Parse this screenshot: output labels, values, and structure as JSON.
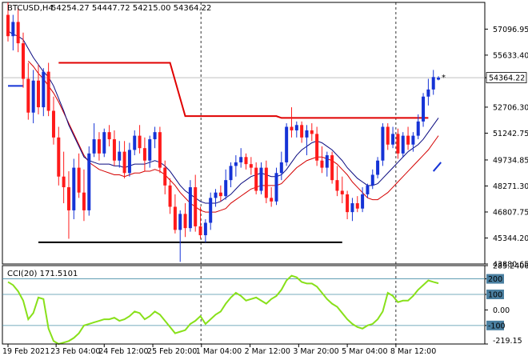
{
  "header": {
    "symbol": "BTCUSD,H4",
    "ohlc": "54254.27 54447.72 54215.00 54364.22"
  },
  "cci_panel": {
    "label": "CCI(20) 171.5101"
  },
  "colors": {
    "bull_candle": "#1533d6",
    "bear_candle": "#ff1a1a",
    "blue_ma": "#0a0a80",
    "red_ma": "#d40000",
    "resistance_line": "#e00000",
    "support_line": "#000000",
    "cci_line": "#88e01a",
    "cci_level_line": "#4a90a8",
    "axis": "#000000",
    "price_box": "#ffffff"
  },
  "chart_data": [
    {
      "type": "candlestick",
      "title": "BTCUSD,H4",
      "price_axis_labels": [
        "57096.95",
        "55633.40",
        "54364.22",
        "52706.30",
        "51242.75",
        "49734.85",
        "48271.30",
        "46807.75",
        "45344.20",
        "43880.65"
      ],
      "ylim": [
        43880.65,
        58600
      ],
      "current_price": "54364.22",
      "time_labels": [
        "19 Feb 2021",
        "23 Feb 04:00",
        "24 Feb 12:00",
        "25 Feb 20:00",
        "1 Mar 04:00",
        "2 Mar 12:00",
        "3 Mar 20:00",
        "5 Mar 04:00",
        "8 Mar 12:00"
      ],
      "candles": [
        {
          "o": 57900,
          "h": 58600,
          "l": 56400,
          "c": 56700
        },
        {
          "o": 56700,
          "h": 57900,
          "l": 55900,
          "c": 57500
        },
        {
          "o": 57500,
          "h": 58300,
          "l": 55800,
          "c": 56300
        },
        {
          "o": 56300,
          "h": 56900,
          "l": 53800,
          "c": 54300
        },
        {
          "o": 54300,
          "h": 55200,
          "l": 52000,
          "c": 52400
        },
        {
          "o": 52400,
          "h": 54800,
          "l": 51800,
          "c": 54200
        },
        {
          "o": 54200,
          "h": 55100,
          "l": 52300,
          "c": 52700
        },
        {
          "o": 52700,
          "h": 54900,
          "l": 52200,
          "c": 54700
        },
        {
          "o": 54700,
          "h": 55200,
          "l": 52200,
          "c": 52500
        },
        {
          "o": 52500,
          "h": 53300,
          "l": 50600,
          "c": 51000
        },
        {
          "o": 51000,
          "h": 51600,
          "l": 48300,
          "c": 48800
        },
        {
          "o": 48800,
          "h": 50200,
          "l": 47300,
          "c": 48200
        },
        {
          "o": 48200,
          "h": 49100,
          "l": 45300,
          "c": 46900
        },
        {
          "o": 46900,
          "h": 49800,
          "l": 46400,
          "c": 49300
        },
        {
          "o": 49300,
          "h": 50100,
          "l": 47600,
          "c": 47900
        },
        {
          "o": 47900,
          "h": 49200,
          "l": 46300,
          "c": 46900
        },
        {
          "o": 46900,
          "h": 50500,
          "l": 46600,
          "c": 50100
        },
        {
          "o": 50100,
          "h": 51800,
          "l": 49900,
          "c": 50900
        },
        {
          "o": 50900,
          "h": 51300,
          "l": 49700,
          "c": 50100
        },
        {
          "o": 50100,
          "h": 51500,
          "l": 49900,
          "c": 51300
        },
        {
          "o": 51300,
          "h": 51700,
          "l": 50500,
          "c": 50900
        },
        {
          "o": 50900,
          "h": 51400,
          "l": 49400,
          "c": 49700
        },
        {
          "o": 49700,
          "h": 50800,
          "l": 49300,
          "c": 50200
        },
        {
          "o": 50200,
          "h": 50800,
          "l": 48700,
          "c": 49000
        },
        {
          "o": 49000,
          "h": 50700,
          "l": 48800,
          "c": 50300
        },
        {
          "o": 50300,
          "h": 51400,
          "l": 50000,
          "c": 51100
        },
        {
          "o": 51100,
          "h": 51700,
          "l": 50100,
          "c": 50400
        },
        {
          "o": 50400,
          "h": 51000,
          "l": 49100,
          "c": 49700
        },
        {
          "o": 49700,
          "h": 51100,
          "l": 49300,
          "c": 50900
        },
        {
          "o": 50900,
          "h": 51600,
          "l": 50400,
          "c": 51300
        },
        {
          "o": 51300,
          "h": 51600,
          "l": 49000,
          "c": 49300
        },
        {
          "o": 49300,
          "h": 49700,
          "l": 47800,
          "c": 48300
        },
        {
          "o": 48300,
          "h": 48700,
          "l": 46700,
          "c": 47100
        },
        {
          "o": 47100,
          "h": 47800,
          "l": 45600,
          "c": 45800
        },
        {
          "o": 45800,
          "h": 46900,
          "l": 44000,
          "c": 46700
        },
        {
          "o": 46700,
          "h": 47300,
          "l": 45400,
          "c": 45900
        },
        {
          "o": 45900,
          "h": 48600,
          "l": 45700,
          "c": 48200
        },
        {
          "o": 48200,
          "h": 48900,
          "l": 45700,
          "c": 46000
        },
        {
          "o": 46000,
          "h": 47100,
          "l": 45300,
          "c": 45500
        },
        {
          "o": 45500,
          "h": 46400,
          "l": 45100,
          "c": 46200
        },
        {
          "o": 46200,
          "h": 47900,
          "l": 45800,
          "c": 47600
        },
        {
          "o": 47600,
          "h": 48100,
          "l": 47100,
          "c": 47900
        },
        {
          "o": 47900,
          "h": 48300,
          "l": 47400,
          "c": 47700
        },
        {
          "o": 47700,
          "h": 49200,
          "l": 47500,
          "c": 48600
        },
        {
          "o": 48600,
          "h": 49600,
          "l": 48200,
          "c": 49400
        },
        {
          "o": 49400,
          "h": 50000,
          "l": 48800,
          "c": 49600
        },
        {
          "o": 49600,
          "h": 50400,
          "l": 49300,
          "c": 49900
        },
        {
          "o": 49900,
          "h": 50100,
          "l": 49200,
          "c": 49500
        },
        {
          "o": 49500,
          "h": 49900,
          "l": 48900,
          "c": 49300
        },
        {
          "o": 49300,
          "h": 49600,
          "l": 47800,
          "c": 48000
        },
        {
          "o": 48000,
          "h": 49600,
          "l": 47800,
          "c": 49300
        },
        {
          "o": 49300,
          "h": 49700,
          "l": 47300,
          "c": 47600
        },
        {
          "o": 47600,
          "h": 48200,
          "l": 47100,
          "c": 47400
        },
        {
          "o": 47400,
          "h": 49300,
          "l": 47200,
          "c": 49000
        },
        {
          "o": 49000,
          "h": 50200,
          "l": 48600,
          "c": 49600
        },
        {
          "o": 49600,
          "h": 51800,
          "l": 49400,
          "c": 51600
        },
        {
          "o": 51600,
          "h": 52700,
          "l": 51000,
          "c": 51400
        },
        {
          "o": 51400,
          "h": 51900,
          "l": 51000,
          "c": 51700
        },
        {
          "o": 51700,
          "h": 51900,
          "l": 50700,
          "c": 51000
        },
        {
          "o": 51000,
          "h": 51700,
          "l": 50000,
          "c": 51400
        },
        {
          "o": 51400,
          "h": 51800,
          "l": 50800,
          "c": 51200
        },
        {
          "o": 51200,
          "h": 51600,
          "l": 49400,
          "c": 49700
        },
        {
          "o": 49700,
          "h": 50500,
          "l": 49000,
          "c": 49300
        },
        {
          "o": 49300,
          "h": 50200,
          "l": 48800,
          "c": 50000
        },
        {
          "o": 50000,
          "h": 50200,
          "l": 48400,
          "c": 48600
        },
        {
          "o": 48600,
          "h": 49400,
          "l": 47700,
          "c": 48000
        },
        {
          "o": 48000,
          "h": 48800,
          "l": 47300,
          "c": 47800
        },
        {
          "o": 47800,
          "h": 48000,
          "l": 46400,
          "c": 46800
        },
        {
          "o": 46800,
          "h": 47600,
          "l": 46300,
          "c": 47300
        },
        {
          "o": 47300,
          "h": 47700,
          "l": 46800,
          "c": 47000
        },
        {
          "o": 47000,
          "h": 48200,
          "l": 46800,
          "c": 47800
        },
        {
          "o": 47800,
          "h": 48400,
          "l": 47600,
          "c": 48300
        },
        {
          "o": 48300,
          "h": 49200,
          "l": 48100,
          "c": 48900
        },
        {
          "o": 48900,
          "h": 49900,
          "l": 48700,
          "c": 49700
        },
        {
          "o": 49700,
          "h": 51800,
          "l": 49400,
          "c": 51600
        },
        {
          "o": 51600,
          "h": 51800,
          "l": 50300,
          "c": 50600
        },
        {
          "o": 50600,
          "h": 51600,
          "l": 50400,
          "c": 51200
        },
        {
          "o": 51200,
          "h": 51500,
          "l": 49800,
          "c": 50100
        },
        {
          "o": 50100,
          "h": 51300,
          "l": 49900,
          "c": 51100
        },
        {
          "o": 51100,
          "h": 51600,
          "l": 50300,
          "c": 50600
        },
        {
          "o": 50600,
          "h": 51300,
          "l": 50200,
          "c": 51100
        },
        {
          "o": 51100,
          "h": 52300,
          "l": 50900,
          "c": 51900
        },
        {
          "o": 51900,
          "h": 53500,
          "l": 51600,
          "c": 53300
        },
        {
          "o": 53300,
          "h": 54300,
          "l": 52800,
          "c": 53700
        },
        {
          "o": 53700,
          "h": 54800,
          "l": 53400,
          "c": 54400
        },
        {
          "o": 54254.27,
          "h": 54447.72,
          "l": 54215.0,
          "c": 54364.22
        }
      ],
      "blue_ma": [
        57000,
        56800,
        56700,
        56500,
        56000,
        55500,
        55100,
        54700,
        54400,
        53900,
        53200,
        52500,
        51700,
        51100,
        50500,
        49900,
        49700,
        49600,
        49500,
        49500,
        49500,
        49400,
        49400,
        49300,
        49400,
        49500,
        49500,
        49500,
        49600,
        49700,
        49600,
        49400,
        49100,
        48700,
        48300,
        48000,
        47800,
        47600,
        47400,
        47300,
        47300,
        47300,
        47400,
        47600,
        47800,
        48100,
        48400,
        48600,
        48800,
        48900,
        49000,
        48900,
        48800,
        48800,
        48900,
        49200,
        49600,
        50000,
        50300,
        50500,
        50700,
        50800,
        50700,
        50500,
        50300,
        50000,
        49700,
        49300,
        49000,
        48700,
        48500,
        48300,
        48300,
        48400,
        48700,
        49000,
        49300,
        49600,
        49900,
        50200,
        50400,
        50600,
        50900,
        51300,
        51700,
        52100
      ],
      "red_ma": [
        null,
        null,
        null,
        null,
        55300,
        55000,
        54600,
        54300,
        53900,
        53500,
        53000,
        52400,
        51800,
        51200,
        50600,
        50000,
        49600,
        49400,
        49200,
        49100,
        49000,
        48900,
        48900,
        48800,
        48900,
        49000,
        49000,
        49100,
        49100,
        49200,
        49100,
        48900,
        48600,
        48300,
        47900,
        47600,
        47300,
        47100,
        46900,
        46800,
        46800,
        46800,
        46900,
        47000,
        47300,
        47500,
        47700,
        47900,
        48100,
        48200,
        48300,
        48300,
        48300,
        48300,
        48400,
        48700,
        49000,
        49300,
        49500,
        49700,
        49800,
        49900,
        49900,
        49800,
        49700,
        49500,
        49200,
        48900,
        48500,
        48200,
        47900,
        47600,
        47500,
        47500,
        47700,
        47900,
        48200,
        48500,
        48800,
        49100,
        49400,
        49700,
        50000,
        50300,
        50700,
        51100
      ],
      "resistance_line": [
        {
          "x": 10,
          "y": 55200
        },
        {
          "x": 32,
          "y": 55200
        },
        {
          "x": 35,
          "y": 52200
        },
        {
          "x": 53,
          "y": 52200
        },
        {
          "x": 54,
          "y": 52100
        },
        {
          "x": 83,
          "y": 52100
        }
      ],
      "support_line": {
        "y": 45100,
        "x_from": 6,
        "x_to": 66
      },
      "blue_fragment_left": [
        {
          "x": 0,
          "y": 53900
        },
        {
          "x": 3,
          "y": 53900
        }
      ],
      "blue_fragment_right": [
        {
          "x": 84,
          "y": 49100
        },
        {
          "x": 85.5,
          "y": 49600
        }
      ]
    },
    {
      "type": "line",
      "title": "CCI(20) 171.5101",
      "y_axis_labels": [
        "285.2406",
        "200",
        "100",
        "0.00",
        "-100",
        "-219.15"
      ],
      "ylim": [
        -219.15,
        285.2406
      ],
      "levels": [
        200,
        100,
        -100
      ],
      "values": [
        180,
        160,
        120,
        60,
        -60,
        -20,
        80,
        70,
        -120,
        -200,
        -230,
        -210,
        -200,
        -180,
        -150,
        -100,
        -90,
        -80,
        -70,
        -60,
        -60,
        -50,
        -70,
        -60,
        -40,
        -10,
        -20,
        -60,
        -40,
        -10,
        -30,
        -70,
        -110,
        -150,
        -140,
        -130,
        -90,
        -70,
        -40,
        -90,
        -60,
        -30,
        -10,
        40,
        80,
        110,
        90,
        60,
        70,
        80,
        60,
        40,
        70,
        90,
        130,
        190,
        220,
        210,
        180,
        170,
        170,
        150,
        110,
        70,
        40,
        20,
        -20,
        -60,
        -90,
        -110,
        -120,
        -100,
        -90,
        -60,
        -10,
        110,
        90,
        50,
        60,
        60,
        90,
        130,
        160,
        190,
        180,
        171.5
      ]
    }
  ]
}
